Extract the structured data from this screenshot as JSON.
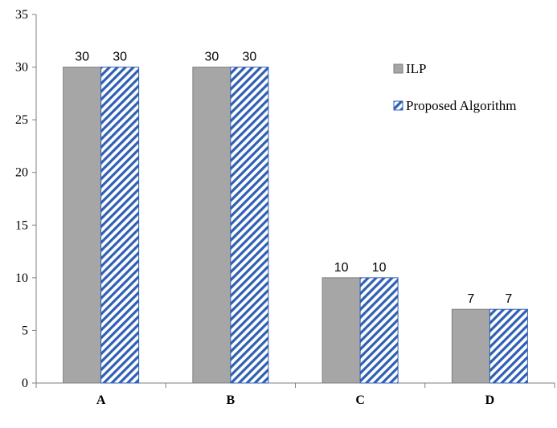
{
  "chart_data": {
    "type": "bar",
    "categories": [
      "A",
      "B",
      "C",
      "D"
    ],
    "series": [
      {
        "name": "ILP",
        "values": [
          30,
          30,
          10,
          7
        ],
        "color": "#a6a6a6",
        "pattern": "solid"
      },
      {
        "name": "Proposed Algorithm",
        "values": [
          30,
          30,
          10,
          7
        ],
        "color": "#2f5fb3",
        "pattern": "diagonal-hatch"
      }
    ],
    "data_labels": [
      [
        "30",
        "30",
        "10",
        "7"
      ],
      [
        "30",
        "30",
        "10",
        "7"
      ]
    ],
    "yticks": [
      0,
      5,
      10,
      15,
      20,
      25,
      30,
      35
    ],
    "ylim": [
      0,
      35
    ],
    "grid": false,
    "legend_position": "top-right",
    "title": "",
    "xlabel": "",
    "ylabel": ""
  }
}
